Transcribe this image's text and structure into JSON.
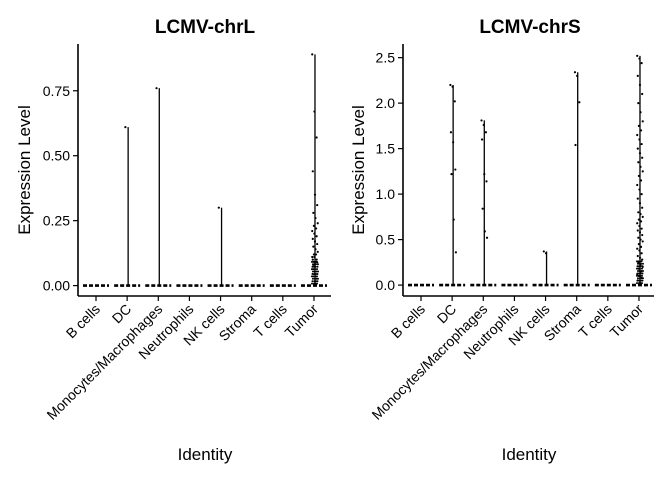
{
  "chart_data": [
    {
      "type": "violin",
      "title": "LCMV-chrL",
      "xlabel": "Identity",
      "ylabel": "Expression Level",
      "ylim": [
        -0.04,
        0.93
      ],
      "yticks": [
        0.0,
        0.25,
        0.5,
        0.75
      ],
      "ytick_labels": [
        "0.00",
        "0.25",
        "0.50",
        "0.75"
      ],
      "categories": [
        "B cells",
        "DC",
        "Monocytes/Macrophages",
        "Neutrophils",
        "NK cells",
        "Stroma",
        "T cells",
        "Tumor"
      ],
      "max_values": [
        0,
        0.61,
        0.76,
        0,
        0.3,
        0,
        0,
        0.89
      ],
      "points": [
        [],
        [
          0.61
        ],
        [
          0.76
        ],
        [],
        [
          0.3
        ],
        [],
        [],
        [
          0.89,
          0.67,
          0.57,
          0.44,
          0.35,
          0.31,
          0.28,
          0.26,
          0.24,
          0.23,
          0.22,
          0.21,
          0.2,
          0.19,
          0.18,
          0.17,
          0.16,
          0.15,
          0.14,
          0.13,
          0.12,
          0.12,
          0.11,
          0.11,
          0.1,
          0.1,
          0.09,
          0.09,
          0.08
        ]
      ]
    },
    {
      "type": "violin",
      "title": "LCMV-chrS",
      "xlabel": "Identity",
      "ylabel": "Expression Level",
      "ylim": [
        -0.12,
        2.65
      ],
      "yticks": [
        0.0,
        0.5,
        1.0,
        1.5,
        2.0,
        2.5
      ],
      "ytick_labels": [
        "0.0",
        "0.5",
        "1.0",
        "1.5",
        "2.0",
        "2.5"
      ],
      "categories": [
        "B cells",
        "DC",
        "Monocytes/Macrophages",
        "Neutrophils",
        "NK cells",
        "Stroma",
        "T cells",
        "Tumor"
      ],
      "max_values": [
        0,
        2.2,
        1.81,
        0,
        0.37,
        2.34,
        0,
        2.52
      ],
      "points": [
        [],
        [
          2.2,
          2.18,
          2.02,
          1.68,
          1.57,
          1.27,
          1.22,
          0.72,
          0.36
        ],
        [
          1.81,
          1.76,
          1.68,
          1.6,
          1.22,
          1.14,
          0.84,
          0.59,
          0.52
        ],
        [],
        [
          0.37,
          0.35
        ],
        [
          2.34,
          2.3,
          2.01,
          1.54
        ],
        [],
        [
          2.52,
          2.49,
          2.44,
          2.3,
          2.2,
          2.1,
          2.0,
          1.9,
          1.8,
          1.75,
          1.7,
          1.65,
          1.6,
          1.55,
          1.5,
          1.45,
          1.4,
          1.35,
          1.3,
          1.25,
          1.2,
          1.15,
          1.1,
          1.05,
          1.0,
          0.95,
          0.9,
          0.85,
          0.8,
          0.78,
          0.75,
          0.72,
          0.7,
          0.68,
          0.65,
          0.62,
          0.6,
          0.58,
          0.55,
          0.52,
          0.5,
          0.48,
          0.45,
          0.42,
          0.4,
          0.38,
          0.35,
          0.32,
          0.3,
          0.28,
          0.25,
          0.22,
          0.2,
          0.18,
          0.15,
          0.12,
          0.1,
          0.08,
          0.05
        ]
      ]
    }
  ]
}
